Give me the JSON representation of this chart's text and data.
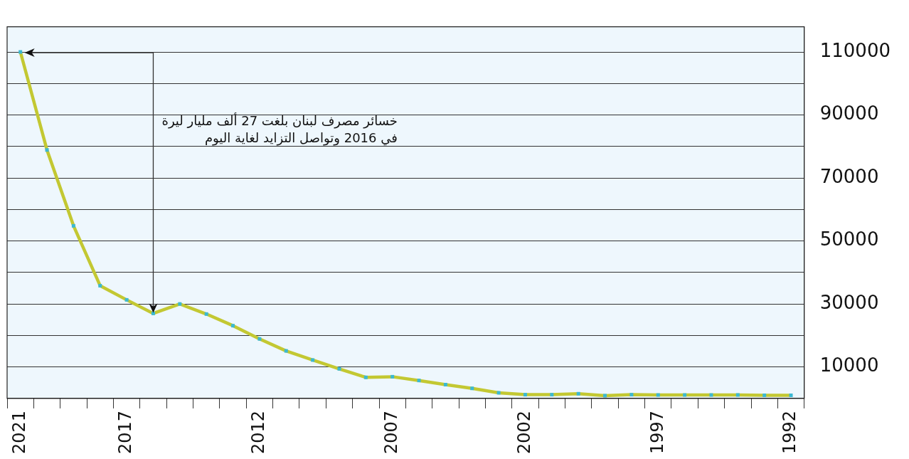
{
  "chart_data": {
    "type": "line",
    "categories": [
      "2021",
      null,
      null,
      null,
      "2017",
      null,
      null,
      null,
      null,
      "2012",
      null,
      null,
      null,
      null,
      "2007",
      null,
      null,
      null,
      null,
      "2002",
      null,
      null,
      null,
      null,
      "1997",
      null,
      null,
      null,
      null,
      "1992"
    ],
    "series": [
      {
        "color": "#c3c832",
        "values": [
          110000,
          78900,
          54800,
          35800,
          31300,
          27000,
          30000,
          26800,
          23100,
          18900,
          15100,
          12200,
          9400,
          6700,
          6900,
          5700,
          4400,
          3200,
          1800,
          1200,
          1200,
          1500,
          900,
          1200,
          1100,
          1100,
          1100,
          1100,
          1000,
          1000
        ]
      }
    ],
    "ylim": [
      0,
      118000
    ],
    "yticks": [
      10000,
      {
        "value": 20000,
        "label": null
      },
      30000,
      {
        "value": 40000,
        "label": null
      },
      50000,
      {
        "value": 60000,
        "label": null
      },
      70000,
      {
        "value": 80000,
        "label": null
      },
      90000,
      {
        "value": 100000,
        "label": null
      },
      110000
    ],
    "grid": "y",
    "legend": false,
    "marker": "square",
    "line_style": "solid",
    "annotations": [
      "خسائر مصرف لبنان بلغت 27 ألف مليار ليرة\nفي 2016 وتواصل التزايد لغاية اليوم"
    ]
  }
}
